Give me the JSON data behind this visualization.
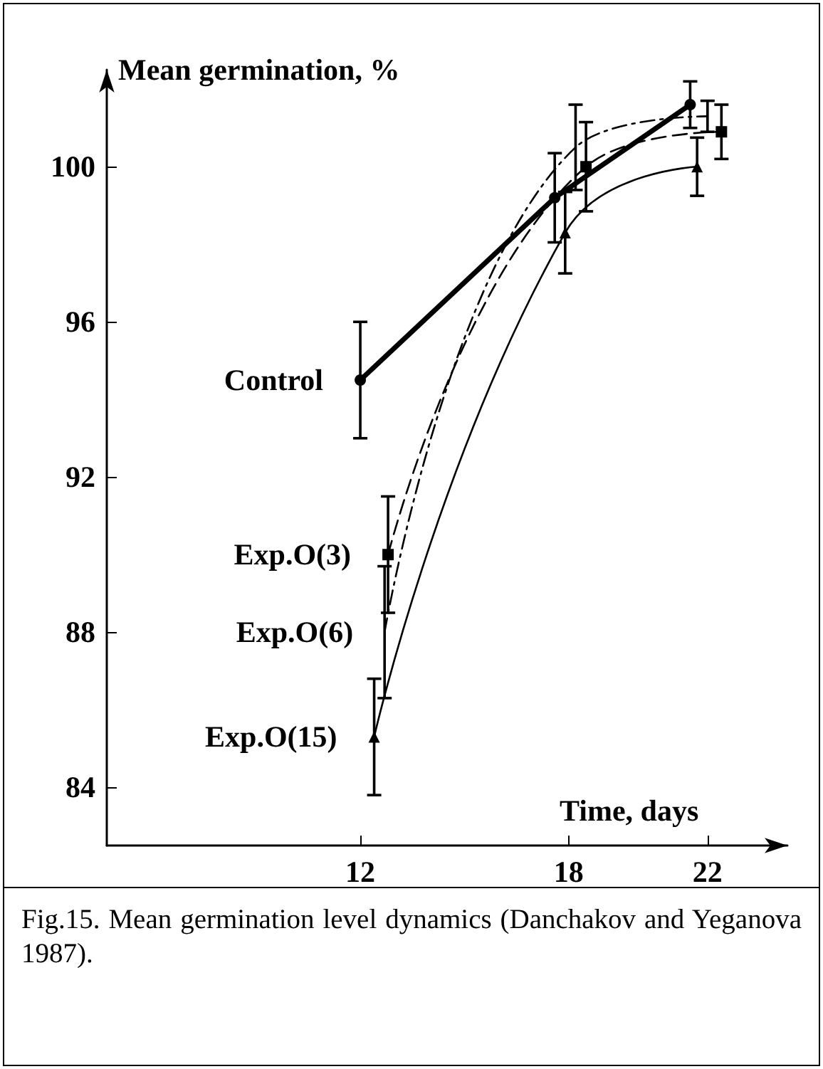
{
  "chart_data": {
    "type": "line",
    "xlabel": "Time, days",
    "ylabel": "Mean germination, %",
    "xlim": [
      4.7,
      24.3
    ],
    "ylim": [
      82.5,
      102.5
    ],
    "xticks": [
      12,
      18,
      22
    ],
    "yticks": [
      84,
      88,
      92,
      96,
      100
    ],
    "grid": false,
    "legend": false,
    "annotations": [
      "Fig.15. Mean germination level dynamics (Danchakov and Yeganova 1987)."
    ],
    "series": [
      {
        "name": "Control",
        "color": "#000000",
        "marker": "circle",
        "line_style": "solid",
        "x": [
          12,
          17.6,
          21.5
        ],
        "values": [
          94.5,
          99.2,
          101.6
        ],
        "errors": [
          1.5,
          1.15,
          0.6
        ]
      },
      {
        "name": "Exp.O(3)",
        "color": "#000000",
        "marker": "square",
        "line_style": "dashed",
        "x": [
          12.8,
          18.5,
          22.4
        ],
        "values": [
          90.0,
          100.0,
          100.9
        ],
        "errors": [
          1.5,
          1.15,
          0.7
        ]
      },
      {
        "name": "Exp.O(6)",
        "color": "#000000",
        "marker": "none",
        "line_style": "dotted",
        "x": [
          12.7,
          18.2,
          22.0
        ],
        "values": [
          88.0,
          100.5,
          101.3
        ],
        "errors": [
          1.7,
          1.1,
          0.4
        ]
      },
      {
        "name": "Exp.O(15)",
        "color": "#000000",
        "marker": "triangle",
        "line_style": "solid",
        "x": [
          12.4,
          17.9,
          21.7
        ],
        "values": [
          85.3,
          98.3,
          100.0
        ],
        "errors": [
          1.5,
          1.05,
          0.75
        ]
      }
    ]
  }
}
